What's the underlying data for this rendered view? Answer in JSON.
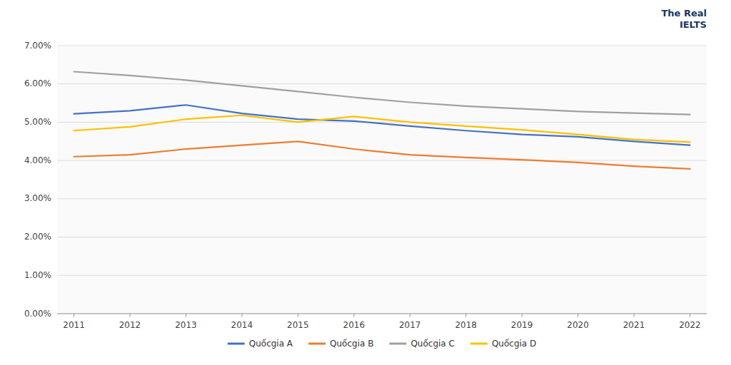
{
  "chart_data": {
    "type": "line",
    "annotations": [
      "The Real\nIELTS"
    ],
    "x": [
      2011,
      2012,
      2013,
      2014,
      2015,
      2016,
      2017,
      2018,
      2019,
      2020,
      2021,
      2022
    ],
    "series": [
      {
        "name": "Quốcgia A",
        "color": "#4472C4",
        "values": [
          0.0522,
          0.053,
          0.0545,
          0.0523,
          0.0508,
          0.0503,
          0.049,
          0.0478,
          0.0468,
          0.0462,
          0.045,
          0.044
        ]
      },
      {
        "name": "Quốcgia B",
        "color": "#ED7D31",
        "values": [
          0.041,
          0.0415,
          0.043,
          0.044,
          0.045,
          0.043,
          0.0415,
          0.0408,
          0.0402,
          0.0395,
          0.0385,
          0.0378
        ]
      },
      {
        "name": "Quốcgia C",
        "color": "#A0A0A0",
        "values": [
          0.0632,
          0.0622,
          0.061,
          0.0595,
          0.058,
          0.0565,
          0.0552,
          0.0542,
          0.0535,
          0.0528,
          0.0524,
          0.052
        ]
      },
      {
        "name": "Quốcgia D",
        "color": "#FFC000",
        "values": [
          0.0478,
          0.0488,
          0.0508,
          0.0518,
          0.05,
          0.0515,
          0.05,
          0.049,
          0.048,
          0.0468,
          0.0455,
          0.0448
        ]
      }
    ],
    "xlim": [
      2010.7,
      2022.3
    ],
    "xticks": [
      2011,
      2012,
      2013,
      2014,
      2015,
      2016,
      2017,
      2018,
      2019,
      2020,
      2021,
      2022
    ],
    "ylim": [
      0.0,
      0.07
    ],
    "yticks": [
      {
        "value": 0,
        "label": "0.00%"
      },
      {
        "value": 0.01,
        "label": "1.00%"
      },
      {
        "value": 0.02,
        "label": "2.00%"
      },
      {
        "value": 0.03,
        "label": "3.00%"
      },
      {
        "value": 0.04,
        "label": "4.00%"
      },
      {
        "value": 0.05,
        "label": "5.00%"
      },
      {
        "value": 0.06,
        "label": "6.00%"
      },
      {
        "value": 0.07,
        "label": "7.00%"
      }
    ],
    "grid": true,
    "legend": "bottom"
  }
}
